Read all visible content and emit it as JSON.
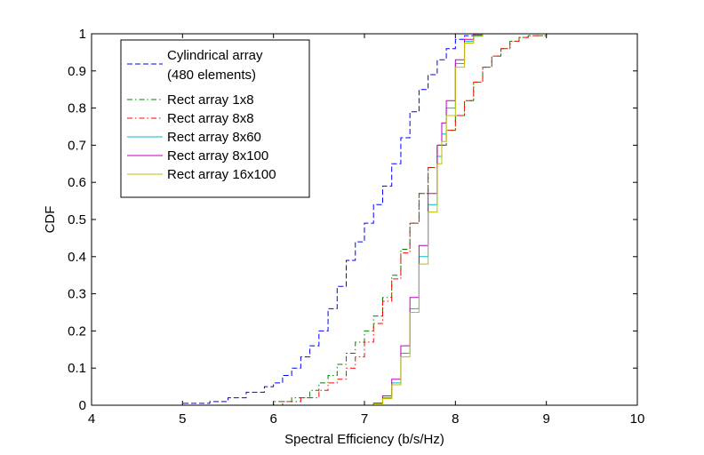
{
  "chart_data": {
    "type": "line",
    "title": "",
    "xlabel": "Spectral Efficiency (b/s/Hz)",
    "ylabel": "CDF",
    "xlim": [
      4,
      10
    ],
    "ylim": [
      0,
      1
    ],
    "xticks": [
      "4",
      "5",
      "6",
      "7",
      "8",
      "9",
      "10"
    ],
    "yticks": [
      "0",
      "0.1",
      "0.2",
      "0.3",
      "0.4",
      "0.5",
      "0.6",
      "0.7",
      "0.8",
      "0.9",
      "1"
    ],
    "legend_position": "top-left",
    "series": [
      {
        "name": "Cylindrical array (480 elements)",
        "legend_lines": [
          "Cylindrical array",
          "(480 elements)"
        ],
        "color": "#0000ff",
        "style": "dashed",
        "x": [
          4.5,
          5.0,
          5.3,
          5.5,
          5.7,
          5.9,
          6.0,
          6.1,
          6.2,
          6.3,
          6.4,
          6.5,
          6.6,
          6.7,
          6.8,
          6.9,
          7.0,
          7.1,
          7.2,
          7.3,
          7.4,
          7.5,
          7.6,
          7.7,
          7.8,
          7.9,
          8.0,
          8.1,
          8.2,
          8.3
        ],
        "y": [
          0.0,
          0.005,
          0.01,
          0.02,
          0.035,
          0.05,
          0.06,
          0.08,
          0.1,
          0.13,
          0.16,
          0.2,
          0.26,
          0.32,
          0.39,
          0.44,
          0.49,
          0.54,
          0.59,
          0.65,
          0.72,
          0.79,
          0.85,
          0.89,
          0.93,
          0.96,
          0.985,
          0.995,
          1.0,
          1.0
        ]
      },
      {
        "name": "Rect array 1x8",
        "color": "#008000",
        "style": "dashdot",
        "x": [
          5.7,
          6.0,
          6.2,
          6.4,
          6.5,
          6.6,
          6.7,
          6.8,
          6.9,
          7.0,
          7.1,
          7.2,
          7.3,
          7.4,
          7.5,
          7.6,
          7.7,
          7.8,
          7.9,
          8.0,
          8.1,
          8.2,
          8.3,
          8.4,
          8.5,
          8.6,
          8.7,
          8.8,
          9.0,
          9.2
        ],
        "y": [
          0.0,
          0.01,
          0.02,
          0.04,
          0.06,
          0.08,
          0.11,
          0.14,
          0.17,
          0.2,
          0.24,
          0.29,
          0.35,
          0.42,
          0.49,
          0.57,
          0.64,
          0.7,
          0.74,
          0.78,
          0.82,
          0.87,
          0.91,
          0.94,
          0.96,
          0.98,
          0.99,
          0.995,
          1.0,
          1.0
        ]
      },
      {
        "name": "Rect array 8x8",
        "color": "#ff0000",
        "style": "dashdot",
        "x": [
          5.8,
          6.1,
          6.3,
          6.5,
          6.6,
          6.7,
          6.8,
          6.9,
          7.0,
          7.1,
          7.2,
          7.3,
          7.4,
          7.5,
          7.6,
          7.7,
          7.8,
          7.9,
          8.0,
          8.1,
          8.2,
          8.3,
          8.4,
          8.5,
          8.6,
          8.7,
          8.8,
          9.0,
          9.2
        ],
        "y": [
          0.0,
          0.01,
          0.02,
          0.04,
          0.06,
          0.07,
          0.1,
          0.13,
          0.17,
          0.22,
          0.28,
          0.34,
          0.41,
          0.49,
          0.57,
          0.64,
          0.7,
          0.74,
          0.78,
          0.82,
          0.87,
          0.91,
          0.94,
          0.96,
          0.98,
          0.99,
          0.995,
          1.0,
          1.0
        ]
      },
      {
        "name": "Rect array 8x60",
        "color": "#00bfbf",
        "style": "solid",
        "x": [
          7.0,
          7.1,
          7.2,
          7.3,
          7.4,
          7.5,
          7.6,
          7.7,
          7.8,
          7.85,
          7.9,
          8.0,
          8.1,
          8.2,
          8.3
        ],
        "y": [
          0.0,
          0.005,
          0.02,
          0.06,
          0.14,
          0.26,
          0.4,
          0.54,
          0.67,
          0.73,
          0.8,
          0.92,
          0.98,
          0.995,
          1.0
        ]
      },
      {
        "name": "Rect array 8x100",
        "color": "#bf00bf",
        "style": "solid",
        "x": [
          7.0,
          7.1,
          7.2,
          7.3,
          7.4,
          7.5,
          7.6,
          7.7,
          7.8,
          7.85,
          7.9,
          8.0,
          8.1,
          8.2,
          8.3
        ],
        "y": [
          0.0,
          0.006,
          0.025,
          0.07,
          0.16,
          0.29,
          0.43,
          0.57,
          0.7,
          0.76,
          0.82,
          0.93,
          0.985,
          0.997,
          1.0
        ]
      },
      {
        "name": "Rect array 16x100",
        "color": "#bfbf00",
        "style": "solid",
        "x": [
          7.0,
          7.1,
          7.2,
          7.3,
          7.4,
          7.5,
          7.6,
          7.7,
          7.8,
          7.85,
          7.9,
          8.0,
          8.1,
          8.2,
          8.3
        ],
        "y": [
          0.0,
          0.004,
          0.018,
          0.055,
          0.13,
          0.25,
          0.38,
          0.52,
          0.65,
          0.71,
          0.78,
          0.91,
          0.975,
          0.993,
          1.0
        ]
      }
    ]
  }
}
